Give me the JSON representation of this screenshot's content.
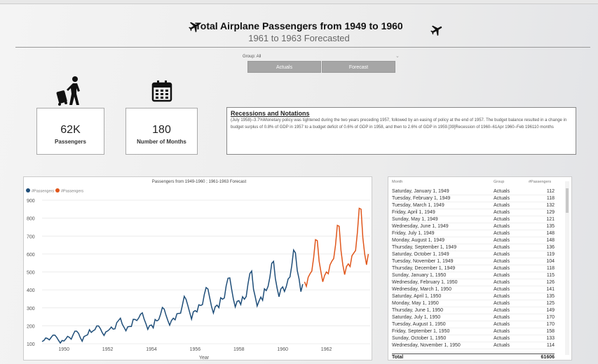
{
  "header": {
    "title": "Total Airplane Passengers from 1949 to 1960",
    "subtitle": "1961 to 1963 Forecasted",
    "icon_left": "airplane-icon",
    "icon_right": "airplane-icon"
  },
  "slicer": {
    "label": "Group: All",
    "buttons": [
      "Actuals",
      "Forecast"
    ]
  },
  "cards": [
    {
      "value": "62K",
      "label": "Passengers",
      "icon": "traveler-luggage-icon"
    },
    {
      "value": "180",
      "label": "Number of Months",
      "icon": "calendar-icon"
    }
  ],
  "notes": {
    "title": "Recessions and Notations",
    "text": "(July 1958)–3.7%Monetary policy was tightened during the two years preceding 1957, followed by an easing of policy at the end of 1957. The budget balance resulted in a change in budget surplus of 0.8% of GDP in 1957 to a budget deficit of 0.6% of GDP in 1958, and then to 2.6% of GDP in 1959.[39]Recession of 1960–61Apr 1960–Feb 196110 months"
  },
  "table": {
    "columns": [
      "Month",
      "Group",
      "#Passengers"
    ],
    "rows": [
      [
        "Saturday, January 1, 1949",
        "Actuals",
        "112"
      ],
      [
        "Tuesday, February 1, 1949",
        "Actuals",
        "118"
      ],
      [
        "Tuesday, March 1, 1949",
        "Actuals",
        "132"
      ],
      [
        "Friday, April 1, 1949",
        "Actuals",
        "129"
      ],
      [
        "Sunday, May 1, 1949",
        "Actuals",
        "121"
      ],
      [
        "Wednesday, June 1, 1949",
        "Actuals",
        "135"
      ],
      [
        "Friday, July 1, 1949",
        "Actuals",
        "148"
      ],
      [
        "Monday, August 1, 1949",
        "Actuals",
        "148"
      ],
      [
        "Thursday, September 1, 1949",
        "Actuals",
        "136"
      ],
      [
        "Saturday, October 1, 1949",
        "Actuals",
        "119"
      ],
      [
        "Tuesday, November 1, 1949",
        "Actuals",
        "104"
      ],
      [
        "Thursday, December 1, 1949",
        "Actuals",
        "118"
      ],
      [
        "Sunday, January 1, 1950",
        "Actuals",
        "115"
      ],
      [
        "Wednesday, February 1, 1950",
        "Actuals",
        "126"
      ],
      [
        "Wednesday, March 1, 1950",
        "Actuals",
        "141"
      ],
      [
        "Saturday, April 1, 1950",
        "Actuals",
        "135"
      ],
      [
        "Monday, May 1, 1950",
        "Actuals",
        "125"
      ],
      [
        "Thursday, June 1, 1950",
        "Actuals",
        "149"
      ],
      [
        "Saturday, July 1, 1950",
        "Actuals",
        "170"
      ],
      [
        "Tuesday, August 1, 1950",
        "Actuals",
        "170"
      ],
      [
        "Friday, September 1, 1950",
        "Actuals",
        "158"
      ],
      [
        "Sunday, October 1, 1950",
        "Actuals",
        "133"
      ],
      [
        "Wednesday, November 1, 1950",
        "Actuals",
        "114"
      ]
    ],
    "total_label": "Total",
    "total_value": "61606"
  },
  "chart_data": {
    "type": "line",
    "title": "Passengers from 1949-1960 ; 1961-1963 Forecast",
    "xlabel": "Year",
    "ylabel": "",
    "xlim": [
      1949,
      1964
    ],
    "ylim": [
      100,
      900
    ],
    "x_ticks": [
      "1950",
      "1952",
      "1954",
      "1956",
      "1958",
      "1960",
      "1962"
    ],
    "y_ticks": [
      "100",
      "200",
      "300",
      "400",
      "500",
      "600",
      "700",
      "800",
      "900"
    ],
    "grid": true,
    "legend": "top-left",
    "series": [
      {
        "name": "#Passengers",
        "color": "#1f4e79",
        "start": 1949,
        "values": [
          112,
          118,
          132,
          129,
          121,
          135,
          148,
          148,
          136,
          119,
          104,
          118,
          115,
          126,
          141,
          135,
          125,
          149,
          170,
          170,
          158,
          133,
          114,
          140,
          145,
          150,
          178,
          163,
          172,
          178,
          199,
          199,
          184,
          162,
          146,
          166,
          171,
          180,
          193,
          181,
          183,
          218,
          230,
          242,
          209,
          191,
          172,
          194,
          196,
          196,
          236,
          235,
          229,
          243,
          264,
          272,
          237,
          211,
          180,
          201,
          204,
          188,
          235,
          227,
          234,
          264,
          302,
          293,
          259,
          229,
          203,
          229,
          242,
          233,
          267,
          269,
          270,
          315,
          364,
          347,
          312,
          274,
          237,
          278,
          284,
          277,
          317,
          313,
          318,
          374,
          413,
          405,
          355,
          306,
          271,
          306,
          315,
          301,
          356,
          348,
          355,
          422,
          465,
          467,
          404,
          347,
          305,
          336,
          340,
          318,
          362,
          348,
          363,
          435,
          491,
          505,
          404,
          359,
          310,
          337,
          360,
          342,
          406,
          396,
          420,
          472,
          548,
          559,
          463,
          407,
          362,
          405,
          417,
          391,
          419,
          461,
          472,
          535,
          622,
          606,
          508,
          461,
          390,
          432
        ]
      },
      {
        "name": "#Passengers",
        "color": "#e0561b",
        "start": 1961,
        "values": [
          445,
          420,
          470,
          490,
          505,
          580,
          680,
          675,
          560,
          500,
          445,
          480,
          500,
          490,
          540,
          560,
          575,
          650,
          760,
          755,
          620,
          540,
          485,
          530,
          545,
          530,
          590,
          605,
          620,
          720,
          855,
          850,
          690,
          600,
          540,
          600
        ]
      }
    ]
  }
}
